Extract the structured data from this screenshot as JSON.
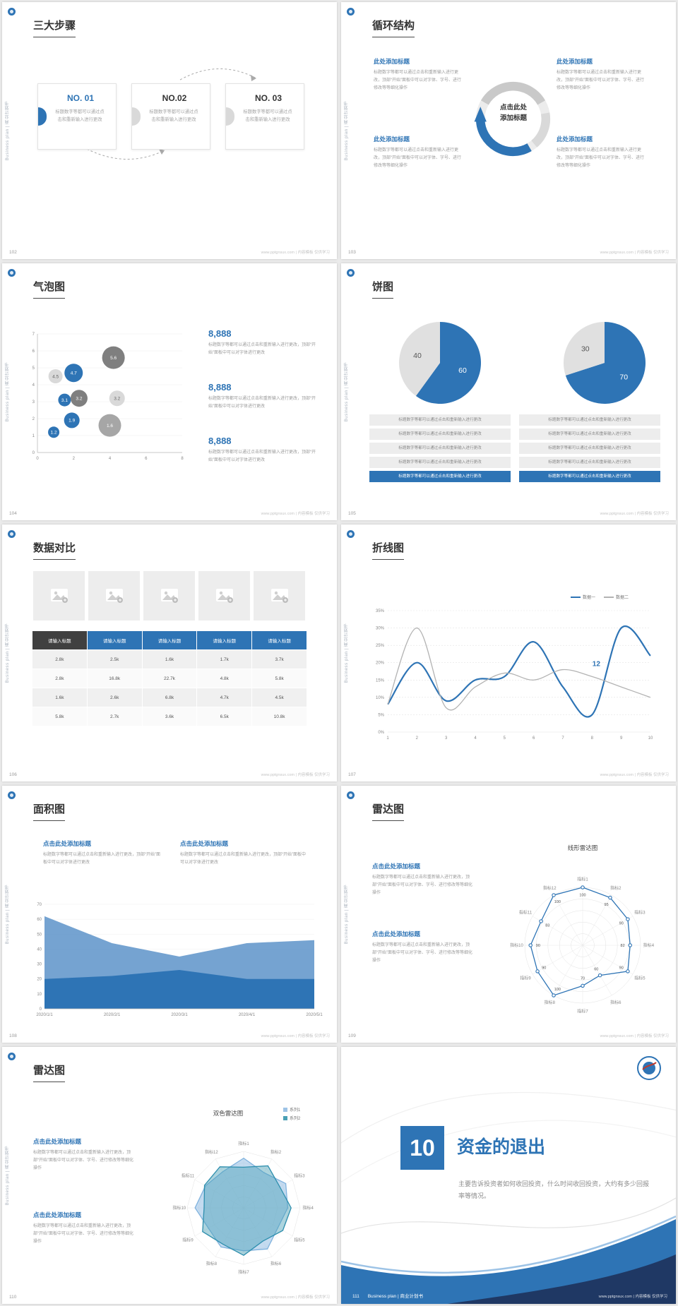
{
  "accent": "#2e74b5",
  "common": {
    "vertical_text": "Business plan | 商业计划书",
    "footer_site": "www.pptgnsux.com | 内容模板 仅供学习",
    "ph_long": "标题数字等都可以通过点击和重新输入进行更改，顶部“开始”面板中可以对字体、字号、进行修改等等细化操作",
    "ph_medium": "标题数字等都可以通过点击和重新输入进行更改，顶部“开始”面板中可以对字体进行更改",
    "ph_short": "标题数字等都可以通过点击和重新输入进行更改",
    "click_heading": "点击此处添加标题",
    "add_heading": "此处添加标题"
  },
  "slides": {
    "s102": {
      "page": "102",
      "title": "三大步骤",
      "steps": [
        {
          "no": "NO. 01"
        },
        {
          "no": "NO.02"
        },
        {
          "no": "NO. 03"
        }
      ]
    },
    "s103": {
      "page": "103",
      "title": "循环结构",
      "center_label": "点击此处\n添加标题"
    },
    "s104": {
      "page": "104",
      "title": "气泡图",
      "stat_value": "8,888"
    },
    "s105": {
      "page": "105",
      "title": "饼图"
    },
    "s106": {
      "page": "106",
      "title": "数据对比"
    },
    "s107": {
      "page": "107",
      "title": "折线图"
    },
    "s108": {
      "page": "108",
      "title": "面积图"
    },
    "s109": {
      "page": "109",
      "title": "雷达图"
    },
    "s110": {
      "page": "110",
      "title": "雷达图"
    },
    "s111": {
      "page": "111",
      "number": "10",
      "title": "资金的退出",
      "body": "主要告诉投资者如何收回投资，什么时间收回投资，大约有多少回报率等情况。",
      "footer_label": "Business plan | 商业计划书"
    }
  },
  "chart_data": [
    {
      "id": "bubble",
      "type": "scatter",
      "title": "气泡图",
      "xlim": [
        0,
        8
      ],
      "ylim": [
        0,
        7
      ],
      "xticks": [
        0,
        2,
        4,
        6,
        8
      ],
      "yticks": [
        0,
        1,
        2,
        3,
        4,
        5,
        6,
        7
      ],
      "points": [
        {
          "x": 1.0,
          "y": 4.5,
          "r": 10,
          "label": "4.5",
          "color": "#d9d9d9",
          "label_color": "#666666"
        },
        {
          "x": 2.0,
          "y": 4.7,
          "r": 13,
          "label": "4.7",
          "color": "#2e74b5",
          "label_color": "#ffffff"
        },
        {
          "x": 4.2,
          "y": 5.6,
          "r": 16,
          "label": "5.6",
          "color": "#7f7f7f",
          "label_color": "#ffffff"
        },
        {
          "x": 1.5,
          "y": 3.1,
          "r": 9,
          "label": "3.1",
          "color": "#2e74b5",
          "label_color": "#ffffff"
        },
        {
          "x": 2.3,
          "y": 3.2,
          "r": 12,
          "label": "3.2",
          "color": "#7f7f7f",
          "label_color": "#ffffff"
        },
        {
          "x": 4.4,
          "y": 3.2,
          "r": 11,
          "label": "3.2",
          "color": "#d9d9d9",
          "label_color": "#666666"
        },
        {
          "x": 1.9,
          "y": 1.9,
          "r": 11,
          "label": "1.9",
          "color": "#2e74b5",
          "label_color": "#ffffff"
        },
        {
          "x": 0.9,
          "y": 1.2,
          "r": 8,
          "label": "1.2",
          "color": "#2e74b5",
          "label_color": "#ffffff"
        },
        {
          "x": 4.0,
          "y": 1.6,
          "r": 16,
          "label": "1.6",
          "color": "#a6a6a6",
          "label_color": "#ffffff"
        }
      ]
    },
    {
      "id": "pie1",
      "type": "pie",
      "values": [
        60,
        40
      ],
      "labels": [
        "60",
        "40"
      ],
      "colors": [
        "#2e74b5",
        "#e0e0e0"
      ],
      "label_colors": [
        "#ffffff",
        "#555555"
      ]
    },
    {
      "id": "pie2",
      "type": "pie",
      "values": [
        70,
        30
      ],
      "labels": [
        "70",
        "30"
      ],
      "colors": [
        "#2e74b5",
        "#e0e0e0"
      ],
      "label_colors": [
        "#ffffff",
        "#555555"
      ]
    },
    {
      "id": "compare_table",
      "type": "table",
      "headers": [
        "请输入标题",
        "请输入标题",
        "请输入标题",
        "请输入标题",
        "请输入标题"
      ],
      "rows": [
        [
          "2.8k",
          "2.5k",
          "1.6k",
          "1.7k",
          "3.7k"
        ],
        [
          "2.8k",
          "16.8k",
          "22.7k",
          "4.8k",
          "5.8k"
        ],
        [
          "1.6k",
          "2.6k",
          "6.8k",
          "4.7k",
          "4.5k"
        ],
        [
          "5.8k",
          "2.7k",
          "3.6k",
          "6.5k",
          "10.8k"
        ]
      ]
    },
    {
      "id": "line",
      "type": "line",
      "x": [
        "1",
        "2",
        "3",
        "4",
        "5",
        "6",
        "7",
        "8",
        "9",
        "10"
      ],
      "ylim": [
        0,
        35
      ],
      "ytick_step": 5,
      "series": [
        {
          "name": "数据一",
          "color": "#2e74b5",
          "values": [
            8,
            20,
            9,
            15,
            16,
            26,
            13,
            5,
            30,
            22
          ]
        },
        {
          "name": "数据二",
          "color": "#b3b3b3",
          "values": [
            8,
            30,
            7,
            13,
            17,
            15,
            18,
            16,
            13,
            10
          ]
        }
      ],
      "annotation": {
        "text": "12",
        "x": 8,
        "y": 19
      }
    },
    {
      "id": "area",
      "type": "area",
      "x": [
        "2020/1/1",
        "2020/2/1",
        "2020/3/1",
        "2020/4/1",
        "2020/5/1"
      ],
      "ylim": [
        0,
        70
      ],
      "ytick_step": 10,
      "series": [
        {
          "values": [
            62,
            44,
            35,
            44,
            46
          ],
          "color": "#6699cc",
          "opacity": 0.9
        },
        {
          "values": [
            20,
            22,
            26,
            20,
            20
          ],
          "color": "#2e74b5",
          "opacity": 1
        }
      ]
    },
    {
      "id": "radar_line",
      "type": "radar",
      "title": "线形雷达图",
      "max": 100,
      "grid": "circle",
      "axes": [
        "指标1",
        "指标2",
        "指标3",
        "指标4",
        "指标5",
        "指标6",
        "指标7",
        "指标8",
        "指标9",
        "指标10",
        "指标11",
        "指标12"
      ],
      "series": [
        {
          "name": "",
          "color": "#2e74b5",
          "markers": true,
          "values": [
            100,
            95,
            90,
            82,
            90,
            60,
            70,
            100,
            90,
            90,
            83,
            100
          ]
        }
      ]
    },
    {
      "id": "radar_fill",
      "type": "radar",
      "title": "双色雷达图",
      "max": 100,
      "grid": "polygon",
      "axes": [
        "指标1",
        "指标2",
        "指标3",
        "指标4",
        "指标5",
        "指标6",
        "指标7",
        "指标8",
        "指标9",
        "指标10",
        "指标11",
        "指标12"
      ],
      "series": [
        {
          "name": "系列1",
          "color": "#7fb2de",
          "fill": "#9dc3e6",
          "fill_opacity": 0.6,
          "values": [
            88,
            72,
            86,
            78,
            70,
            84,
            76,
            80,
            72,
            86,
            78,
            74
          ]
        },
        {
          "name": "系列2",
          "color": "#2e8fae",
          "fill": "#4aa0b5",
          "fill_opacity": 0.45,
          "values": [
            72,
            86,
            74,
            84,
            80,
            68,
            84,
            74,
            84,
            70,
            80,
            84
          ]
        }
      ]
    }
  ]
}
